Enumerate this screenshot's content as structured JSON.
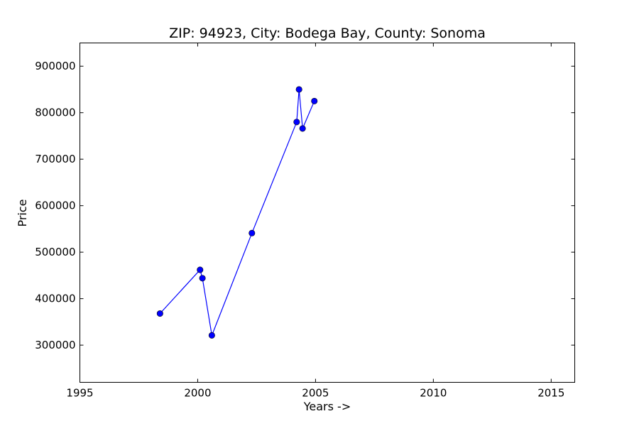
{
  "chart_data": {
    "type": "line",
    "title": "ZIP: 94923, City: Bodega Bay, County: Sonoma",
    "xlabel": "Years ->",
    "ylabel": "Price",
    "xlim": [
      1995,
      2016
    ],
    "ylim": [
      220000,
      950000
    ],
    "xticks": [
      1995,
      2000,
      2005,
      2010,
      2015
    ],
    "yticks": [
      300000,
      400000,
      500000,
      600000,
      700000,
      800000,
      900000
    ],
    "grid": false,
    "series": [
      {
        "name": "Price",
        "color": "#0000ff",
        "marker": "circle",
        "points": [
          {
            "x": 1998.4,
            "y": 368000
          },
          {
            "x": 2000.1,
            "y": 462000
          },
          {
            "x": 2000.2,
            "y": 444000
          },
          {
            "x": 2000.6,
            "y": 321000
          },
          {
            "x": 2002.3,
            "y": 541000
          },
          {
            "x": 2004.2,
            "y": 780000
          },
          {
            "x": 2004.3,
            "y": 850000
          },
          {
            "x": 2004.45,
            "y": 766000
          },
          {
            "x": 2004.95,
            "y": 825000
          }
        ]
      }
    ]
  }
}
